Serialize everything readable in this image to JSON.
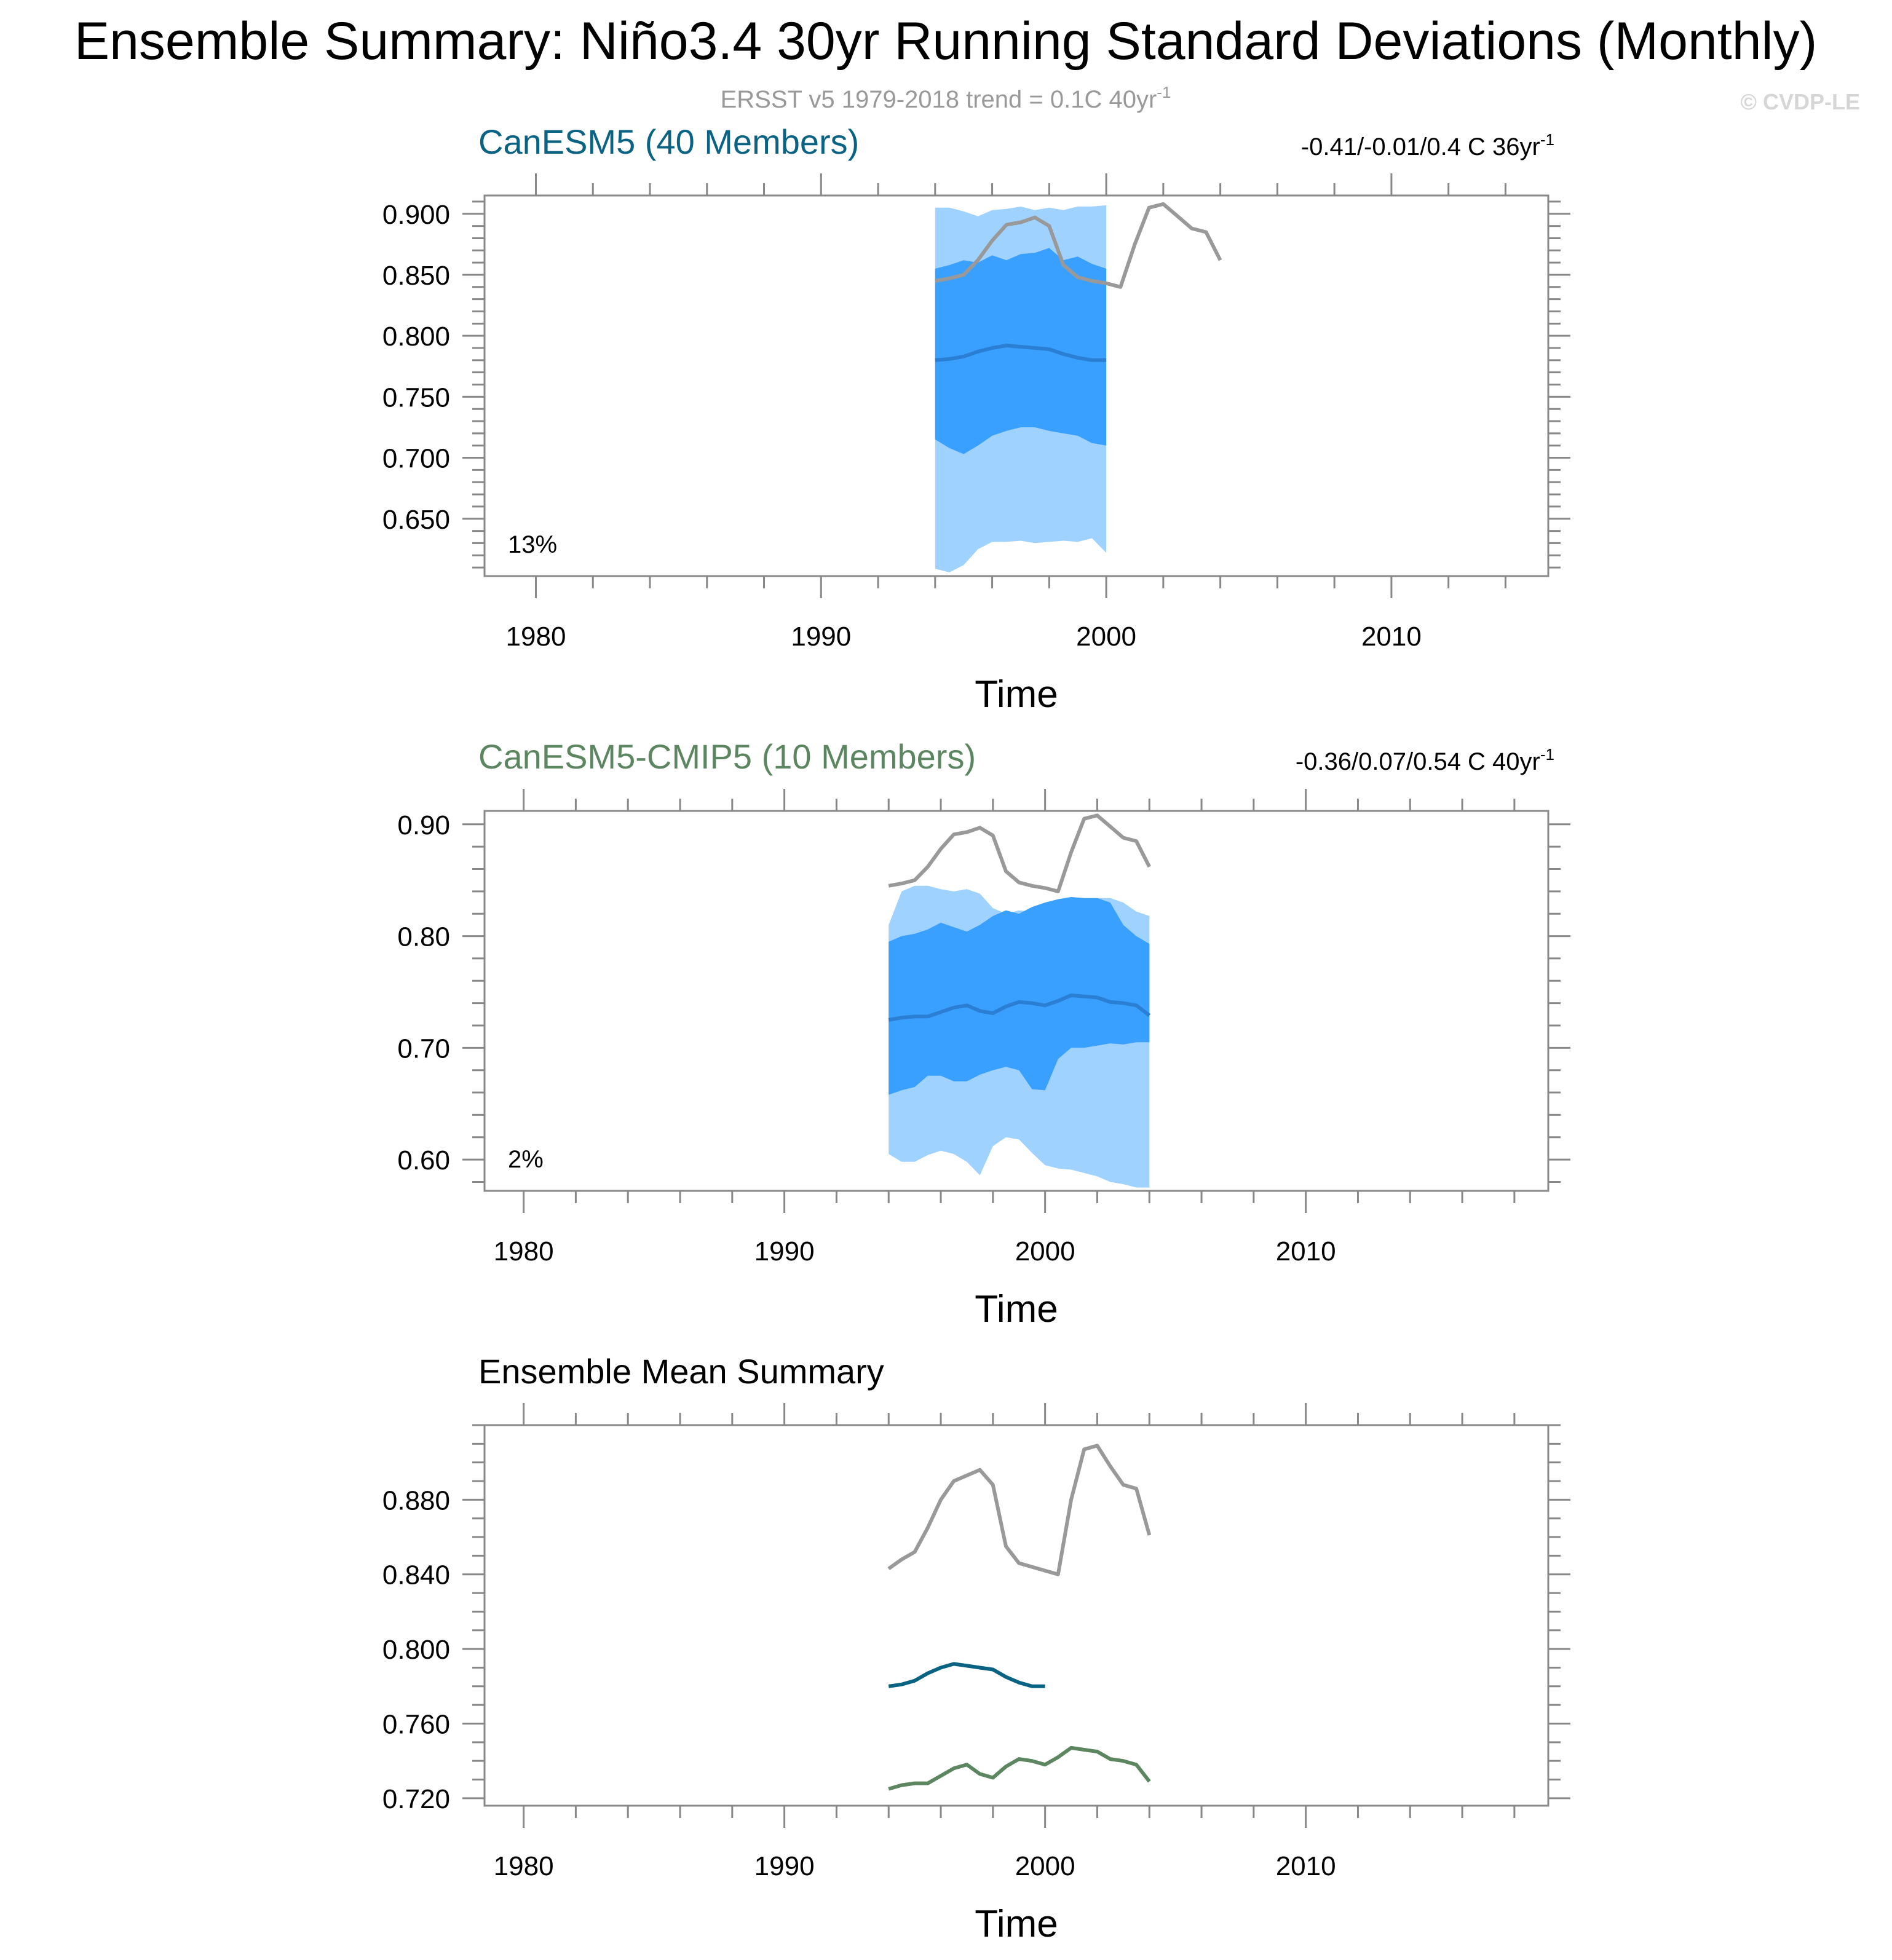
{
  "title": "Ensemble Summary: Niño3.4 30yr Running Standard Deviations (Monthly)",
  "subtitle": "ERSST v5 1979-2018 trend = 0.1C 40yr",
  "subtitle_sup": "-1",
  "copyright": "© CVDP-LE",
  "colors": {
    "observations": "#999999",
    "ens_mean": "#2a7fd4",
    "band_inner": "#3aa0ff",
    "band_outer": "#a0d2ff",
    "canesm5": "#0b6384",
    "canesm5_cmip5": "#5b8660"
  },
  "chart_data": [
    {
      "type": "area",
      "title": "CanESM5 (40 Members)",
      "title_color": "#0b6384",
      "trend": "-0.41/-0.01/0.4 C 36yr",
      "trend_sup": "-1",
      "percent_label": "13%",
      "xlabel": "Time",
      "ylabel": "",
      "xlim": [
        1978.2,
        2015.5
      ],
      "ylim": [
        0.603,
        0.915
      ],
      "x_ticks": [
        1980,
        1990,
        2000,
        2010
      ],
      "y_ticks": [
        0.65,
        0.7,
        0.75,
        0.8,
        0.85,
        0.9
      ],
      "y_tick_labels": [
        "0.650",
        "0.700",
        "0.750",
        "0.800",
        "0.850",
        "0.900"
      ],
      "y_minor": 0.01,
      "observations": {
        "x": [
          1994.0,
          1994.5,
          1995.0,
          1995.5,
          1996.0,
          1996.5,
          1997.0,
          1997.5,
          1998.0,
          1998.5,
          1999.0,
          1999.5,
          2000.0,
          2000.5,
          2001.0,
          2001.5,
          2002.0,
          2002.5,
          2003.0,
          2003.5,
          2004.0
        ],
        "y": [
          0.845,
          0.847,
          0.85,
          0.862,
          0.878,
          0.891,
          0.893,
          0.897,
          0.89,
          0.858,
          0.848,
          0.845,
          0.843,
          0.84,
          0.875,
          0.905,
          0.908,
          0.898,
          0.888,
          0.885,
          0.862
        ]
      },
      "ensemble_mean": {
        "x": [
          1994.0,
          1994.5,
          1995.0,
          1995.5,
          1996.0,
          1996.5,
          1997.0,
          1997.5,
          1998.0,
          1998.5,
          1999.0,
          1999.5,
          2000.0
        ],
        "y": [
          0.78,
          0.781,
          0.783,
          0.787,
          0.79,
          0.792,
          0.791,
          0.79,
          0.789,
          0.785,
          0.782,
          0.78,
          0.78
        ]
      },
      "inner_band": {
        "x": [
          1994.0,
          1994.5,
          1995.0,
          1995.5,
          1996.0,
          1996.5,
          1997.0,
          1997.5,
          1998.0,
          1998.5,
          1999.0,
          1999.5,
          2000.0
        ],
        "upper": [
          0.855,
          0.858,
          0.862,
          0.86,
          0.866,
          0.862,
          0.867,
          0.868,
          0.872,
          0.862,
          0.865,
          0.859,
          0.855
        ],
        "lower": [
          0.715,
          0.708,
          0.703,
          0.71,
          0.718,
          0.722,
          0.725,
          0.725,
          0.722,
          0.72,
          0.718,
          0.712,
          0.71
        ]
      },
      "outer_band": {
        "x": [
          1994.0,
          1994.5,
          1995.0,
          1995.5,
          1996.0,
          1996.5,
          1997.0,
          1997.5,
          1998.0,
          1998.5,
          1999.0,
          1999.5,
          2000.0
        ],
        "upper": [
          0.905,
          0.905,
          0.902,
          0.898,
          0.903,
          0.904,
          0.906,
          0.903,
          0.905,
          0.903,
          0.906,
          0.906,
          0.907
        ],
        "lower": [
          0.609,
          0.606,
          0.612,
          0.625,
          0.631,
          0.631,
          0.632,
          0.63,
          0.631,
          0.632,
          0.631,
          0.634,
          0.622
        ]
      }
    },
    {
      "type": "area",
      "title": "CanESM5-CMIP5 (10 Members)",
      "title_color": "#5b8660",
      "trend": "-0.36/0.07/0.54 C 40yr",
      "trend_sup": "-1",
      "percent_label": "2%",
      "xlabel": "Time",
      "ylabel": "",
      "xlim": [
        1978.5,
        2019.3
      ],
      "ylim": [
        0.572,
        0.912
      ],
      "x_ticks": [
        1980,
        1990,
        2000,
        2010
      ],
      "y_ticks": [
        0.6,
        0.7,
        0.8,
        0.9
      ],
      "y_tick_labels": [
        "0.60",
        "0.70",
        "0.80",
        "0.90"
      ],
      "y_minor": 0.02,
      "observations": {
        "x": [
          1994.0,
          1994.5,
          1995.0,
          1995.5,
          1996.0,
          1996.5,
          1997.0,
          1997.5,
          1998.0,
          1998.5,
          1999.0,
          1999.5,
          2000.0,
          2000.5,
          2001.0,
          2001.5,
          2002.0,
          2002.5,
          2003.0,
          2003.5,
          2004.0
        ],
        "y": [
          0.845,
          0.847,
          0.85,
          0.862,
          0.878,
          0.891,
          0.893,
          0.897,
          0.89,
          0.858,
          0.848,
          0.845,
          0.843,
          0.84,
          0.875,
          0.905,
          0.908,
          0.898,
          0.888,
          0.885,
          0.862
        ]
      },
      "ensemble_mean": {
        "x": [
          1994.0,
          1994.5,
          1995.0,
          1995.5,
          1996.0,
          1996.5,
          1997.0,
          1997.5,
          1998.0,
          1998.5,
          1999.0,
          1999.5,
          2000.0,
          2000.5,
          2001.0,
          2001.5,
          2002.0,
          2002.5,
          2003.0,
          2003.5,
          2004.0
        ],
        "y": [
          0.725,
          0.727,
          0.728,
          0.728,
          0.732,
          0.736,
          0.738,
          0.733,
          0.731,
          0.737,
          0.741,
          0.74,
          0.738,
          0.742,
          0.747,
          0.746,
          0.745,
          0.741,
          0.74,
          0.738,
          0.729
        ]
      },
      "inner_band": {
        "x": [
          1994.0,
          1994.5,
          1995.0,
          1995.5,
          1996.0,
          1996.5,
          1997.0,
          1997.5,
          1998.0,
          1998.5,
          1999.0,
          1999.5,
          2000.0,
          2000.5,
          2001.0,
          2001.5,
          2002.0,
          2002.5,
          2003.0,
          2003.5,
          2004.0
        ],
        "upper": [
          0.795,
          0.8,
          0.802,
          0.806,
          0.812,
          0.808,
          0.804,
          0.81,
          0.818,
          0.823,
          0.82,
          0.826,
          0.83,
          0.833,
          0.835,
          0.834,
          0.834,
          0.83,
          0.81,
          0.8,
          0.793
        ],
        "lower": [
          0.658,
          0.662,
          0.665,
          0.675,
          0.675,
          0.67,
          0.67,
          0.676,
          0.68,
          0.683,
          0.68,
          0.663,
          0.662,
          0.69,
          0.7,
          0.7,
          0.702,
          0.704,
          0.703,
          0.705,
          0.705
        ]
      },
      "outer_band": {
        "x": [
          1994.0,
          1994.5,
          1995.0,
          1995.5,
          1996.0,
          1996.5,
          1997.0,
          1997.5,
          1998.0,
          1998.5,
          1999.0,
          1999.5,
          2000.0,
          2000.5,
          2001.0,
          2001.5,
          2002.0,
          2002.5,
          2003.0,
          2003.5,
          2004.0
        ],
        "upper": [
          0.81,
          0.84,
          0.845,
          0.845,
          0.842,
          0.84,
          0.842,
          0.838,
          0.825,
          0.82,
          0.823,
          0.822,
          0.828,
          0.833,
          0.834,
          0.834,
          0.834,
          0.834,
          0.83,
          0.822,
          0.818
        ],
        "lower": [
          0.605,
          0.598,
          0.598,
          0.604,
          0.608,
          0.605,
          0.598,
          0.586,
          0.612,
          0.62,
          0.618,
          0.606,
          0.595,
          0.592,
          0.591,
          0.588,
          0.585,
          0.58,
          0.578,
          0.575,
          0.575
        ]
      }
    },
    {
      "type": "line",
      "title": "Ensemble Mean Summary",
      "title_color": "#000000",
      "xlabel": "Time",
      "ylabel": "",
      "xlim": [
        1978.5,
        2019.3
      ],
      "ylim": [
        0.716,
        0.92
      ],
      "x_ticks": [
        1980,
        1990,
        2000,
        2010
      ],
      "y_ticks": [
        0.72,
        0.76,
        0.8,
        0.84,
        0.88
      ],
      "y_tick_labels": [
        "0.720",
        "0.760",
        "0.800",
        "0.840",
        "0.880"
      ],
      "y_minor": 0.01,
      "series": [
        {
          "name": "ERSST v5",
          "color": "#999999",
          "x": [
            1994.0,
            1994.5,
            1995.0,
            1995.5,
            1996.0,
            1996.5,
            1997.0,
            1997.5,
            1998.0,
            1998.5,
            1999.0,
            1999.5,
            2000.0,
            2000.5,
            2001.0,
            2001.5,
            2002.0,
            2002.5,
            2003.0,
            2003.5,
            2004.0
          ],
          "y": [
            0.843,
            0.848,
            0.852,
            0.865,
            0.88,
            0.89,
            0.893,
            0.896,
            0.888,
            0.855,
            0.846,
            0.844,
            0.842,
            0.84,
            0.88,
            0.907,
            0.909,
            0.898,
            0.888,
            0.886,
            0.861
          ]
        },
        {
          "name": "CanESM5",
          "color": "#0b6384",
          "x": [
            1994.0,
            1994.5,
            1995.0,
            1995.5,
            1996.0,
            1996.5,
            1997.0,
            1997.5,
            1998.0,
            1998.5,
            1999.0,
            1999.5,
            2000.0
          ],
          "y": [
            0.78,
            0.781,
            0.783,
            0.787,
            0.79,
            0.792,
            0.791,
            0.79,
            0.789,
            0.785,
            0.782,
            0.78,
            0.78
          ]
        },
        {
          "name": "CanESM5-CMIP5",
          "color": "#5b8660",
          "x": [
            1994.0,
            1994.5,
            1995.0,
            1995.5,
            1996.0,
            1996.5,
            1997.0,
            1997.5,
            1998.0,
            1998.5,
            1999.0,
            1999.5,
            2000.0,
            2000.5,
            2001.0,
            2001.5,
            2002.0,
            2002.5,
            2003.0,
            2003.5,
            2004.0
          ],
          "y": [
            0.725,
            0.727,
            0.728,
            0.728,
            0.732,
            0.736,
            0.738,
            0.733,
            0.731,
            0.737,
            0.741,
            0.74,
            0.738,
            0.742,
            0.747,
            0.746,
            0.745,
            0.741,
            0.74,
            0.738,
            0.729
          ]
        }
      ]
    }
  ]
}
